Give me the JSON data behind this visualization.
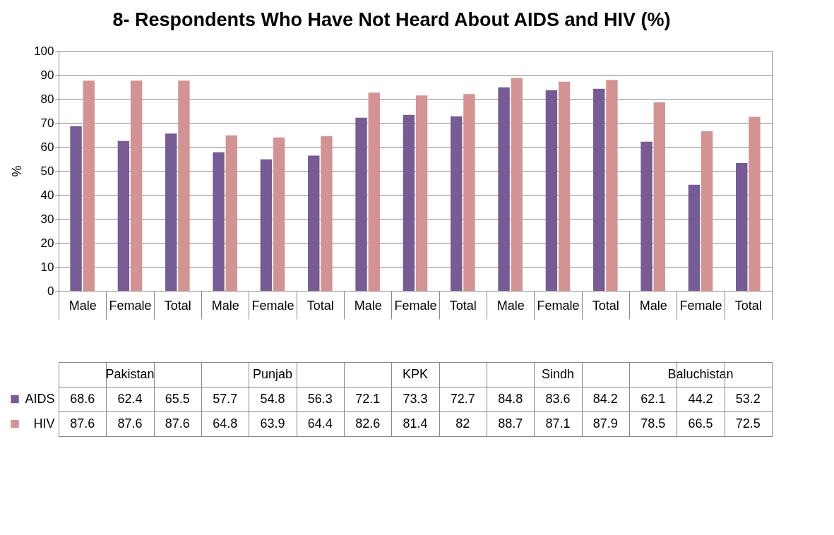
{
  "chart_data": {
    "type": "bar",
    "title": "8- Respondents Who Have Not Heard About AIDS and HIV (%)",
    "ylabel": "%",
    "categories": [
      "Male",
      "Female",
      "Total",
      "Male",
      "Female",
      "Total",
      "Male",
      "Female",
      "Total",
      "Male",
      "Female",
      "Total",
      "Male",
      "Female",
      "Total"
    ],
    "annotations": [
      "Pakistan",
      "Punjab",
      "KPK",
      "Sindh",
      "Baluchistan"
    ],
    "series": [
      {
        "name": "AIDS",
        "color": "#775b94",
        "values": [
          68.6,
          62.4,
          65.5,
          57.7,
          54.8,
          56.3,
          72.1,
          73.3,
          72.7,
          84.8,
          83.6,
          84.2,
          62.1,
          44.2,
          53.2
        ]
      },
      {
        "name": "HIV",
        "color": "#d49393",
        "values": [
          87.6,
          87.6,
          87.6,
          64.8,
          63.9,
          64.4,
          82.6,
          81.4,
          82,
          88.7,
          87.1,
          87.9,
          78.5,
          66.5,
          72.5
        ]
      }
    ],
    "ylim": [
      0,
      100
    ],
    "yticks": [
      0,
      10,
      20,
      30,
      40,
      50,
      60,
      70,
      80,
      90,
      100
    ],
    "grid": "y",
    "data_labels": true,
    "legend": "bottom left"
  }
}
